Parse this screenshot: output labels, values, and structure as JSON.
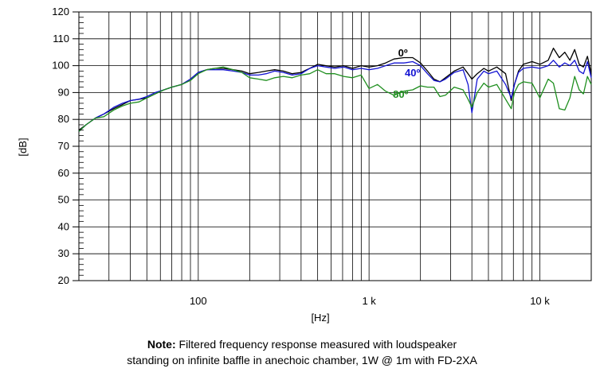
{
  "chart_data": {
    "type": "line",
    "ylabel": "[dB]",
    "xlabel": "[Hz]",
    "x_scale": "log",
    "xlim": [
      20,
      20000
    ],
    "ylim": [
      20,
      120
    ],
    "y_ticks": [
      20,
      30,
      40,
      50,
      60,
      70,
      80,
      90,
      100,
      110,
      120
    ],
    "x_tick_labels": [
      {
        "value": 100,
        "label": "100"
      },
      {
        "value": 1000,
        "label": "1 k"
      },
      {
        "value": 10000,
        "label": "10 k"
      }
    ],
    "grid": true,
    "series": [
      {
        "name": "0º",
        "color": "#000000",
        "label_at": [
          1480,
          103.5
        ],
        "x": [
          20,
          22,
          25,
          28,
          32,
          36,
          40,
          45,
          50,
          56,
          63,
          70,
          80,
          90,
          100,
          112,
          125,
          140,
          160,
          180,
          200,
          225,
          250,
          280,
          315,
          355,
          400,
          450,
          500,
          560,
          630,
          710,
          800,
          900,
          1000,
          1120,
          1250,
          1400,
          1600,
          1800,
          2000,
          2200,
          2400,
          2600,
          2800,
          3150,
          3550,
          3800,
          4000,
          4300,
          4700,
          5000,
          5600,
          6300,
          6800,
          7100,
          7500,
          8000,
          9000,
          10000,
          11200,
          12000,
          13000,
          14000,
          15000,
          16000,
          17000,
          18000,
          19000,
          20000
        ],
        "y": [
          76,
          78,
          80.5,
          82,
          84,
          85.5,
          87,
          87.5,
          88,
          89.5,
          91,
          92,
          93,
          95,
          97.5,
          98.5,
          99,
          99,
          98.5,
          98,
          97,
          97.5,
          98,
          98.5,
          98,
          97,
          97.5,
          99,
          100.5,
          100,
          99.5,
          100,
          99,
          100,
          99.5,
          100,
          101,
          102.5,
          103,
          103,
          101,
          98,
          95,
          94,
          95.5,
          98,
          99.5,
          97,
          95,
          97,
          99,
          98,
          99.5,
          97,
          87,
          93,
          98,
          100.5,
          101.5,
          100.5,
          102,
          106.5,
          103,
          105,
          102,
          106,
          100.5,
          99.5,
          103.5,
          97
        ]
      },
      {
        "name": "40º",
        "color": "#1414d2",
        "label_at": [
          1620,
          96
        ],
        "x": [
          20,
          22,
          25,
          28,
          32,
          36,
          40,
          45,
          50,
          56,
          63,
          70,
          80,
          90,
          100,
          112,
          125,
          140,
          160,
          180,
          200,
          225,
          250,
          280,
          315,
          355,
          400,
          450,
          500,
          560,
          630,
          710,
          800,
          900,
          1000,
          1120,
          1250,
          1400,
          1600,
          1800,
          2000,
          2200,
          2400,
          2600,
          2800,
          3150,
          3550,
          3800,
          4000,
          4300,
          4700,
          5000,
          5600,
          6300,
          6800,
          7100,
          7500,
          8000,
          9000,
          10000,
          11200,
          12000,
          13000,
          14000,
          15000,
          16000,
          17000,
          18000,
          19000,
          20000
        ],
        "y": [
          75.5,
          78,
          80.5,
          82,
          84.5,
          86,
          87,
          87.5,
          88.5,
          90,
          91,
          92,
          93,
          95,
          97.5,
          98.5,
          98.5,
          98.5,
          98,
          97.5,
          96.5,
          96.5,
          97,
          98,
          97.5,
          96.5,
          97,
          99,
          100,
          99.5,
          99,
          99.5,
          98.5,
          99,
          98.5,
          99,
          100,
          101,
          101,
          101.5,
          100,
          97,
          94.5,
          94,
          95,
          97.5,
          98.5,
          93,
          82.5,
          95,
          98,
          97,
          98,
          93,
          88,
          93,
          97.5,
          99,
          99.5,
          99,
          100,
          102,
          99.5,
          101,
          100,
          102,
          98,
          97,
          101.5,
          95.5
        ]
      },
      {
        "name": "80º",
        "color": "#1f8f1f",
        "label_at": [
          1380,
          88
        ],
        "x": [
          20,
          22,
          25,
          28,
          32,
          36,
          40,
          45,
          50,
          56,
          63,
          70,
          80,
          90,
          100,
          112,
          125,
          140,
          160,
          180,
          200,
          225,
          250,
          280,
          315,
          355,
          400,
          450,
          500,
          560,
          630,
          710,
          800,
          900,
          1000,
          1120,
          1250,
          1400,
          1600,
          1800,
          2000,
          2200,
          2400,
          2600,
          2800,
          3150,
          3550,
          3800,
          4000,
          4300,
          4700,
          5000,
          5600,
          6300,
          6800,
          7100,
          7500,
          8000,
          9000,
          10000,
          11200,
          12000,
          13000,
          14000,
          15000,
          16000,
          17000,
          18000,
          19000,
          20000
        ],
        "y": [
          75.5,
          78,
          80.5,
          81,
          83.5,
          85,
          86,
          86.5,
          88,
          89.5,
          91,
          92,
          93,
          94.5,
          97,
          98.5,
          99,
          99.5,
          98.5,
          97.5,
          95.5,
          95,
          94.5,
          95.5,
          96,
          95.5,
          96.5,
          97,
          98.5,
          97,
          97,
          96,
          95.5,
          96.5,
          91.5,
          93,
          90.5,
          89,
          90.5,
          91,
          92.5,
          92,
          92,
          88.5,
          89,
          92,
          91,
          87.5,
          84.5,
          90,
          93.5,
          92,
          93,
          87.5,
          84,
          90,
          93,
          94,
          93.5,
          88,
          95,
          93.5,
          84,
          83.5,
          88,
          96,
          91,
          89.5,
          96,
          93
        ]
      }
    ]
  },
  "note": {
    "bold": "Note:",
    "line1": " Filtered frequency response measured with loudspeaker",
    "line2": "standing on infinite baffle in anechoic chamber, 1W @ 1m with FD-2XA"
  }
}
